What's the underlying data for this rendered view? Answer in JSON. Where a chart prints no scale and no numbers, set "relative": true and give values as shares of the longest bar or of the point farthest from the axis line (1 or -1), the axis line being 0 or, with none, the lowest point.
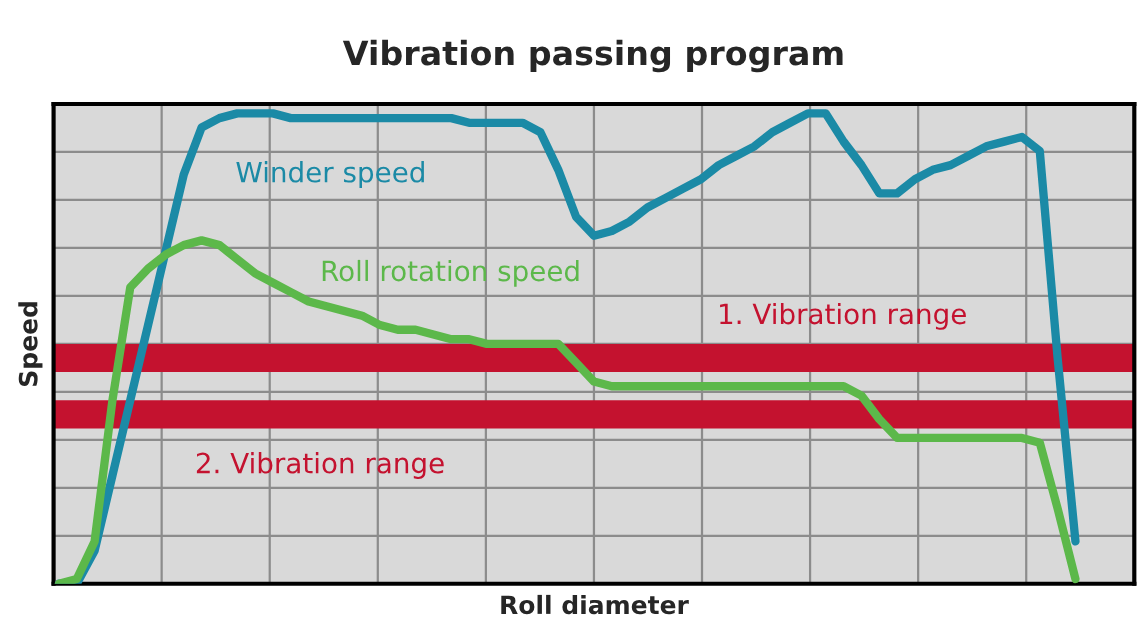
{
  "chart_data": {
    "type": "line",
    "title": "Vibration passing program",
    "xlabel": "Roll diameter",
    "ylabel": "Speed",
    "relative": true,
    "grid": true,
    "legend": false,
    "marker": "none",
    "line_style": "solid",
    "categories": [
      null,
      null,
      null,
      null,
      null,
      null,
      null,
      null,
      null,
      null,
      null,
      null,
      null,
      null,
      null,
      null,
      null,
      null,
      null,
      null,
      null,
      null,
      null,
      null,
      null,
      null,
      null,
      null,
      null,
      null,
      null,
      null,
      null,
      null,
      null,
      null,
      null,
      null,
      null,
      null,
      null,
      null,
      null,
      null,
      null,
      null,
      null,
      null,
      null,
      null,
      null,
      null,
      null,
      null,
      null,
      null,
      null,
      null,
      null,
      null,
      null
    ],
    "series": [
      {
        "name": "Winder speed",
        "color": "#1b8aa6",
        "values": [
          0,
          0,
          0.07,
          0.23,
          0.39,
          0.55,
          0.71,
          0.87,
          0.97,
          0.99,
          1.0,
          1.0,
          1.0,
          0.99,
          0.99,
          0.99,
          0.99,
          0.99,
          0.99,
          0.99,
          0.99,
          0.99,
          0.99,
          0.98,
          0.98,
          0.98,
          0.98,
          0.96,
          0.88,
          0.78,
          0.74,
          0.75,
          0.77,
          0.8,
          0.82,
          0.84,
          0.86,
          0.89,
          0.91,
          0.93,
          0.96,
          0.98,
          1.0,
          1.0,
          0.94,
          0.89,
          0.83,
          0.83,
          0.86,
          0.88,
          0.89,
          0.91,
          0.93,
          0.94,
          0.95,
          0.92,
          0.48,
          0.09,
          null,
          null,
          null
        ]
      },
      {
        "name": "Roll rotation speed",
        "color": "#5cb84a",
        "values": [
          0,
          0.01,
          0.09,
          0.39,
          0.63,
          0.67,
          0.7,
          0.72,
          0.73,
          0.72,
          0.69,
          0.66,
          0.64,
          0.62,
          0.6,
          0.59,
          0.58,
          0.57,
          0.55,
          0.54,
          0.54,
          0.53,
          0.52,
          0.52,
          0.51,
          0.51,
          0.51,
          0.51,
          0.51,
          0.47,
          0.43,
          0.42,
          0.42,
          0.42,
          0.42,
          0.42,
          0.42,
          0.42,
          0.42,
          0.42,
          0.42,
          0.42,
          0.42,
          0.42,
          0.42,
          0.4,
          0.35,
          0.31,
          0.31,
          0.31,
          0.31,
          0.31,
          0.31,
          0.31,
          0.31,
          0.3,
          0.16,
          0.01,
          null,
          null,
          null
        ]
      }
    ],
    "bands": [
      {
        "axis": "y",
        "from": 0.45,
        "to": 0.51,
        "label": "1. Vibration range",
        "color": "#c4122f"
      },
      {
        "axis": "y",
        "from": 0.33,
        "to": 0.39,
        "label": "2. Vibration range",
        "color": "#c4122f"
      }
    ]
  }
}
